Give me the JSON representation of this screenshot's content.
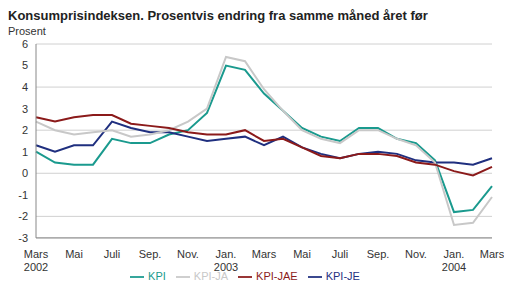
{
  "chart_data": {
    "type": "line",
    "title": "Konsumprisindeksen. Prosentvis endring fra samme måned året før",
    "y_label": "Prosent",
    "categories": [
      "Mars\n2002",
      null,
      "Mai",
      null,
      "Juli",
      null,
      "Sep.",
      null,
      "Nov.",
      null,
      "Jan.\n2003",
      null,
      "Mars",
      null,
      "Mai",
      null,
      "Juli",
      null,
      "Sep.",
      null,
      "Nov.",
      null,
      "Jan.\n2004",
      null,
      "Mars"
    ],
    "series": [
      {
        "name": "KPI",
        "color": "#1a9a8e",
        "values": [
          1.0,
          0.5,
          0.4,
          0.4,
          1.6,
          1.4,
          1.4,
          1.8,
          2.0,
          2.8,
          5.0,
          4.8,
          3.7,
          2.9,
          2.1,
          1.7,
          1.5,
          2.1,
          2.1,
          1.6,
          1.4,
          0.6,
          -1.8,
          -1.7,
          -0.6
        ]
      },
      {
        "name": "KPI-JE",
        "color": "#1f2f7f",
        "values": [
          1.3,
          1.0,
          1.3,
          1.3,
          2.4,
          2.1,
          1.9,
          1.9,
          1.7,
          1.5,
          1.6,
          1.7,
          1.3,
          1.7,
          1.2,
          0.9,
          0.7,
          0.9,
          1.0,
          0.9,
          0.6,
          0.5,
          0.5,
          0.4,
          0.7
        ]
      },
      {
        "name": "KPI-JA",
        "color": "#c8c8c8",
        "values": [
          2.4,
          2.0,
          1.8,
          1.9,
          2.0,
          1.7,
          1.8,
          2.0,
          2.4,
          3.0,
          5.4,
          5.2,
          3.9,
          2.9,
          2.0,
          1.6,
          1.4,
          2.0,
          2.0,
          1.6,
          1.3,
          0.5,
          -2.4,
          -2.3,
          -1.1
        ]
      },
      {
        "name": "KPI-JAE",
        "color": "#8b1a1a",
        "values": [
          2.6,
          2.4,
          2.6,
          2.7,
          2.7,
          2.3,
          2.2,
          2.1,
          1.9,
          1.8,
          1.8,
          2.0,
          1.5,
          1.6,
          1.2,
          0.8,
          0.7,
          0.9,
          0.9,
          0.8,
          0.5,
          0.4,
          0.1,
          -0.1,
          0.3
        ]
      }
    ],
    "ylim": [
      -3,
      6
    ],
    "yticks": [
      -3,
      -2,
      -1,
      0,
      1,
      2,
      3,
      4,
      5,
      6
    ],
    "grid": true,
    "legend": "bottom"
  }
}
